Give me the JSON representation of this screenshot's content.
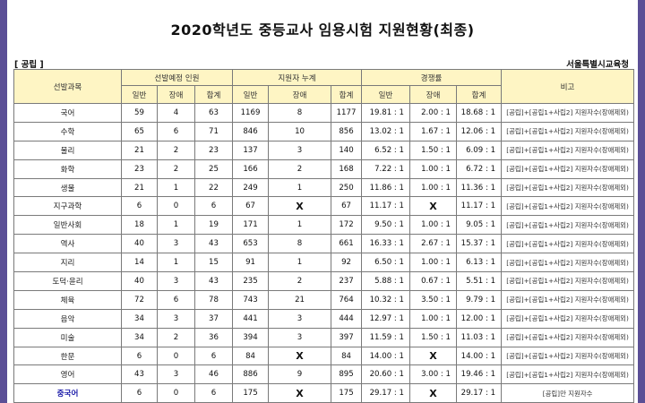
{
  "title": "2020학년도 중등교사 임용시험 지원현황(최종)",
  "category": "[ 공립 ]",
  "office": "서울특별시교육청",
  "headers": {
    "subject": "선발과목",
    "planned": "선발예정 인원",
    "applicants": "지원자 누계",
    "ratio": "경쟁률",
    "note": "비고",
    "general": "일반",
    "disabled": "장애",
    "total": "합계"
  },
  "rows": [
    {
      "subject": "국어",
      "p_gen": "59",
      "p_dis": "4",
      "p_tot": "63",
      "a_gen": "1169",
      "a_dis": "8",
      "a_tot": "1177",
      "r_gen": "19.81 : 1",
      "r_dis": "2.00 : 1",
      "r_tot": "18.68 : 1",
      "note": "[공립]+[공립1+사립2] 지원자수(장애제외)"
    },
    {
      "subject": "수학",
      "p_gen": "65",
      "p_dis": "6",
      "p_tot": "71",
      "a_gen": "846",
      "a_dis": "10",
      "a_tot": "856",
      "r_gen": "13.02 : 1",
      "r_dis": "1.67 : 1",
      "r_tot": "12.06 : 1",
      "note": "[공립]+[공립1+사립2] 지원자수(장애제외)"
    },
    {
      "subject": "물리",
      "p_gen": "21",
      "p_dis": "2",
      "p_tot": "23",
      "a_gen": "137",
      "a_dis": "3",
      "a_tot": "140",
      "r_gen": "6.52 : 1",
      "r_dis": "1.50 : 1",
      "r_tot": "6.09 : 1",
      "note": "[공립]+[공립1+사립2] 지원자수(장애제외)"
    },
    {
      "subject": "화학",
      "p_gen": "23",
      "p_dis": "2",
      "p_tot": "25",
      "a_gen": "166",
      "a_dis": "2",
      "a_tot": "168",
      "r_gen": "7.22 : 1",
      "r_dis": "1.00 : 1",
      "r_tot": "6.72 : 1",
      "note": "[공립]+[공립1+사립2] 지원자수(장애제외)"
    },
    {
      "subject": "생물",
      "p_gen": "21",
      "p_dis": "1",
      "p_tot": "22",
      "a_gen": "249",
      "a_dis": "1",
      "a_tot": "250",
      "r_gen": "11.86 : 1",
      "r_dis": "1.00 : 1",
      "r_tot": "11.36 : 1",
      "note": "[공립]+[공립1+사립2] 지원자수(장애제외)"
    },
    {
      "subject": "지구과학",
      "p_gen": "6",
      "p_dis": "0",
      "p_tot": "6",
      "a_gen": "67",
      "a_dis": "X",
      "a_tot": "67",
      "r_gen": "11.17 : 1",
      "r_dis": "X",
      "r_tot": "11.17 : 1",
      "note": "[공립]+[공립1+사립2] 지원자수(장애제외)"
    },
    {
      "subject": "일반사회",
      "p_gen": "18",
      "p_dis": "1",
      "p_tot": "19",
      "a_gen": "171",
      "a_dis": "1",
      "a_tot": "172",
      "r_gen": "9.50 : 1",
      "r_dis": "1.00 : 1",
      "r_tot": "9.05 : 1",
      "note": "[공립]+[공립1+사립2] 지원자수(장애제외)"
    },
    {
      "subject": "역사",
      "p_gen": "40",
      "p_dis": "3",
      "p_tot": "43",
      "a_gen": "653",
      "a_dis": "8",
      "a_tot": "661",
      "r_gen": "16.33 : 1",
      "r_dis": "2.67 : 1",
      "r_tot": "15.37 : 1",
      "note": "[공립]+[공립1+사립2] 지원자수(장애제외)"
    },
    {
      "subject": "지리",
      "p_gen": "14",
      "p_dis": "1",
      "p_tot": "15",
      "a_gen": "91",
      "a_dis": "1",
      "a_tot": "92",
      "r_gen": "6.50 : 1",
      "r_dis": "1.00 : 1",
      "r_tot": "6.13 : 1",
      "note": "[공립]+[공립1+사립2] 지원자수(장애제외)"
    },
    {
      "subject": "도덕·윤리",
      "p_gen": "40",
      "p_dis": "3",
      "p_tot": "43",
      "a_gen": "235",
      "a_dis": "2",
      "a_tot": "237",
      "r_gen": "5.88 : 1",
      "r_dis": "0.67 : 1",
      "r_tot": "5.51 : 1",
      "note": "[공립]+[공립1+사립2] 지원자수(장애제외)"
    },
    {
      "subject": "체육",
      "p_gen": "72",
      "p_dis": "6",
      "p_tot": "78",
      "a_gen": "743",
      "a_dis": "21",
      "a_tot": "764",
      "r_gen": "10.32 : 1",
      "r_dis": "3.50 : 1",
      "r_tot": "9.79 : 1",
      "note": "[공립]+[공립1+사립2] 지원자수(장애제외)"
    },
    {
      "subject": "음악",
      "p_gen": "34",
      "p_dis": "3",
      "p_tot": "37",
      "a_gen": "441",
      "a_dis": "3",
      "a_tot": "444",
      "r_gen": "12.97 : 1",
      "r_dis": "1.00 : 1",
      "r_tot": "12.00 : 1",
      "note": "[공립]+[공립1+사립2] 지원자수(장애제외)"
    },
    {
      "subject": "미술",
      "p_gen": "34",
      "p_dis": "2",
      "p_tot": "36",
      "a_gen": "394",
      "a_dis": "3",
      "a_tot": "397",
      "r_gen": "11.59 : 1",
      "r_dis": "1.50 : 1",
      "r_tot": "11.03 : 1",
      "note": "[공립]+[공립1+사립2] 지원자수(장애제외)"
    },
    {
      "subject": "한문",
      "p_gen": "6",
      "p_dis": "0",
      "p_tot": "6",
      "a_gen": "84",
      "a_dis": "X",
      "a_tot": "84",
      "r_gen": "14.00 : 1",
      "r_dis": "X",
      "r_tot": "14.00 : 1",
      "note": "[공립]+[공립1+사립2] 지원자수(장애제외)"
    },
    {
      "subject": "영어",
      "p_gen": "43",
      "p_dis": "3",
      "p_tot": "46",
      "a_gen": "886",
      "a_dis": "9",
      "a_tot": "895",
      "r_gen": "20.60 : 1",
      "r_dis": "3.00 : 1",
      "r_tot": "19.46 : 1",
      "note": "[공립]+[공립1+사립2] 지원자수(장애제외)"
    },
    {
      "subject": "중국어",
      "p_gen": "6",
      "p_dis": "0",
      "p_tot": "6",
      "a_gen": "175",
      "a_dis": "X",
      "a_tot": "175",
      "r_gen": "29.17 : 1",
      "r_dis": "X",
      "r_tot": "29.17 : 1",
      "note": "[공립]만 지원자수",
      "highlight": true
    }
  ]
}
